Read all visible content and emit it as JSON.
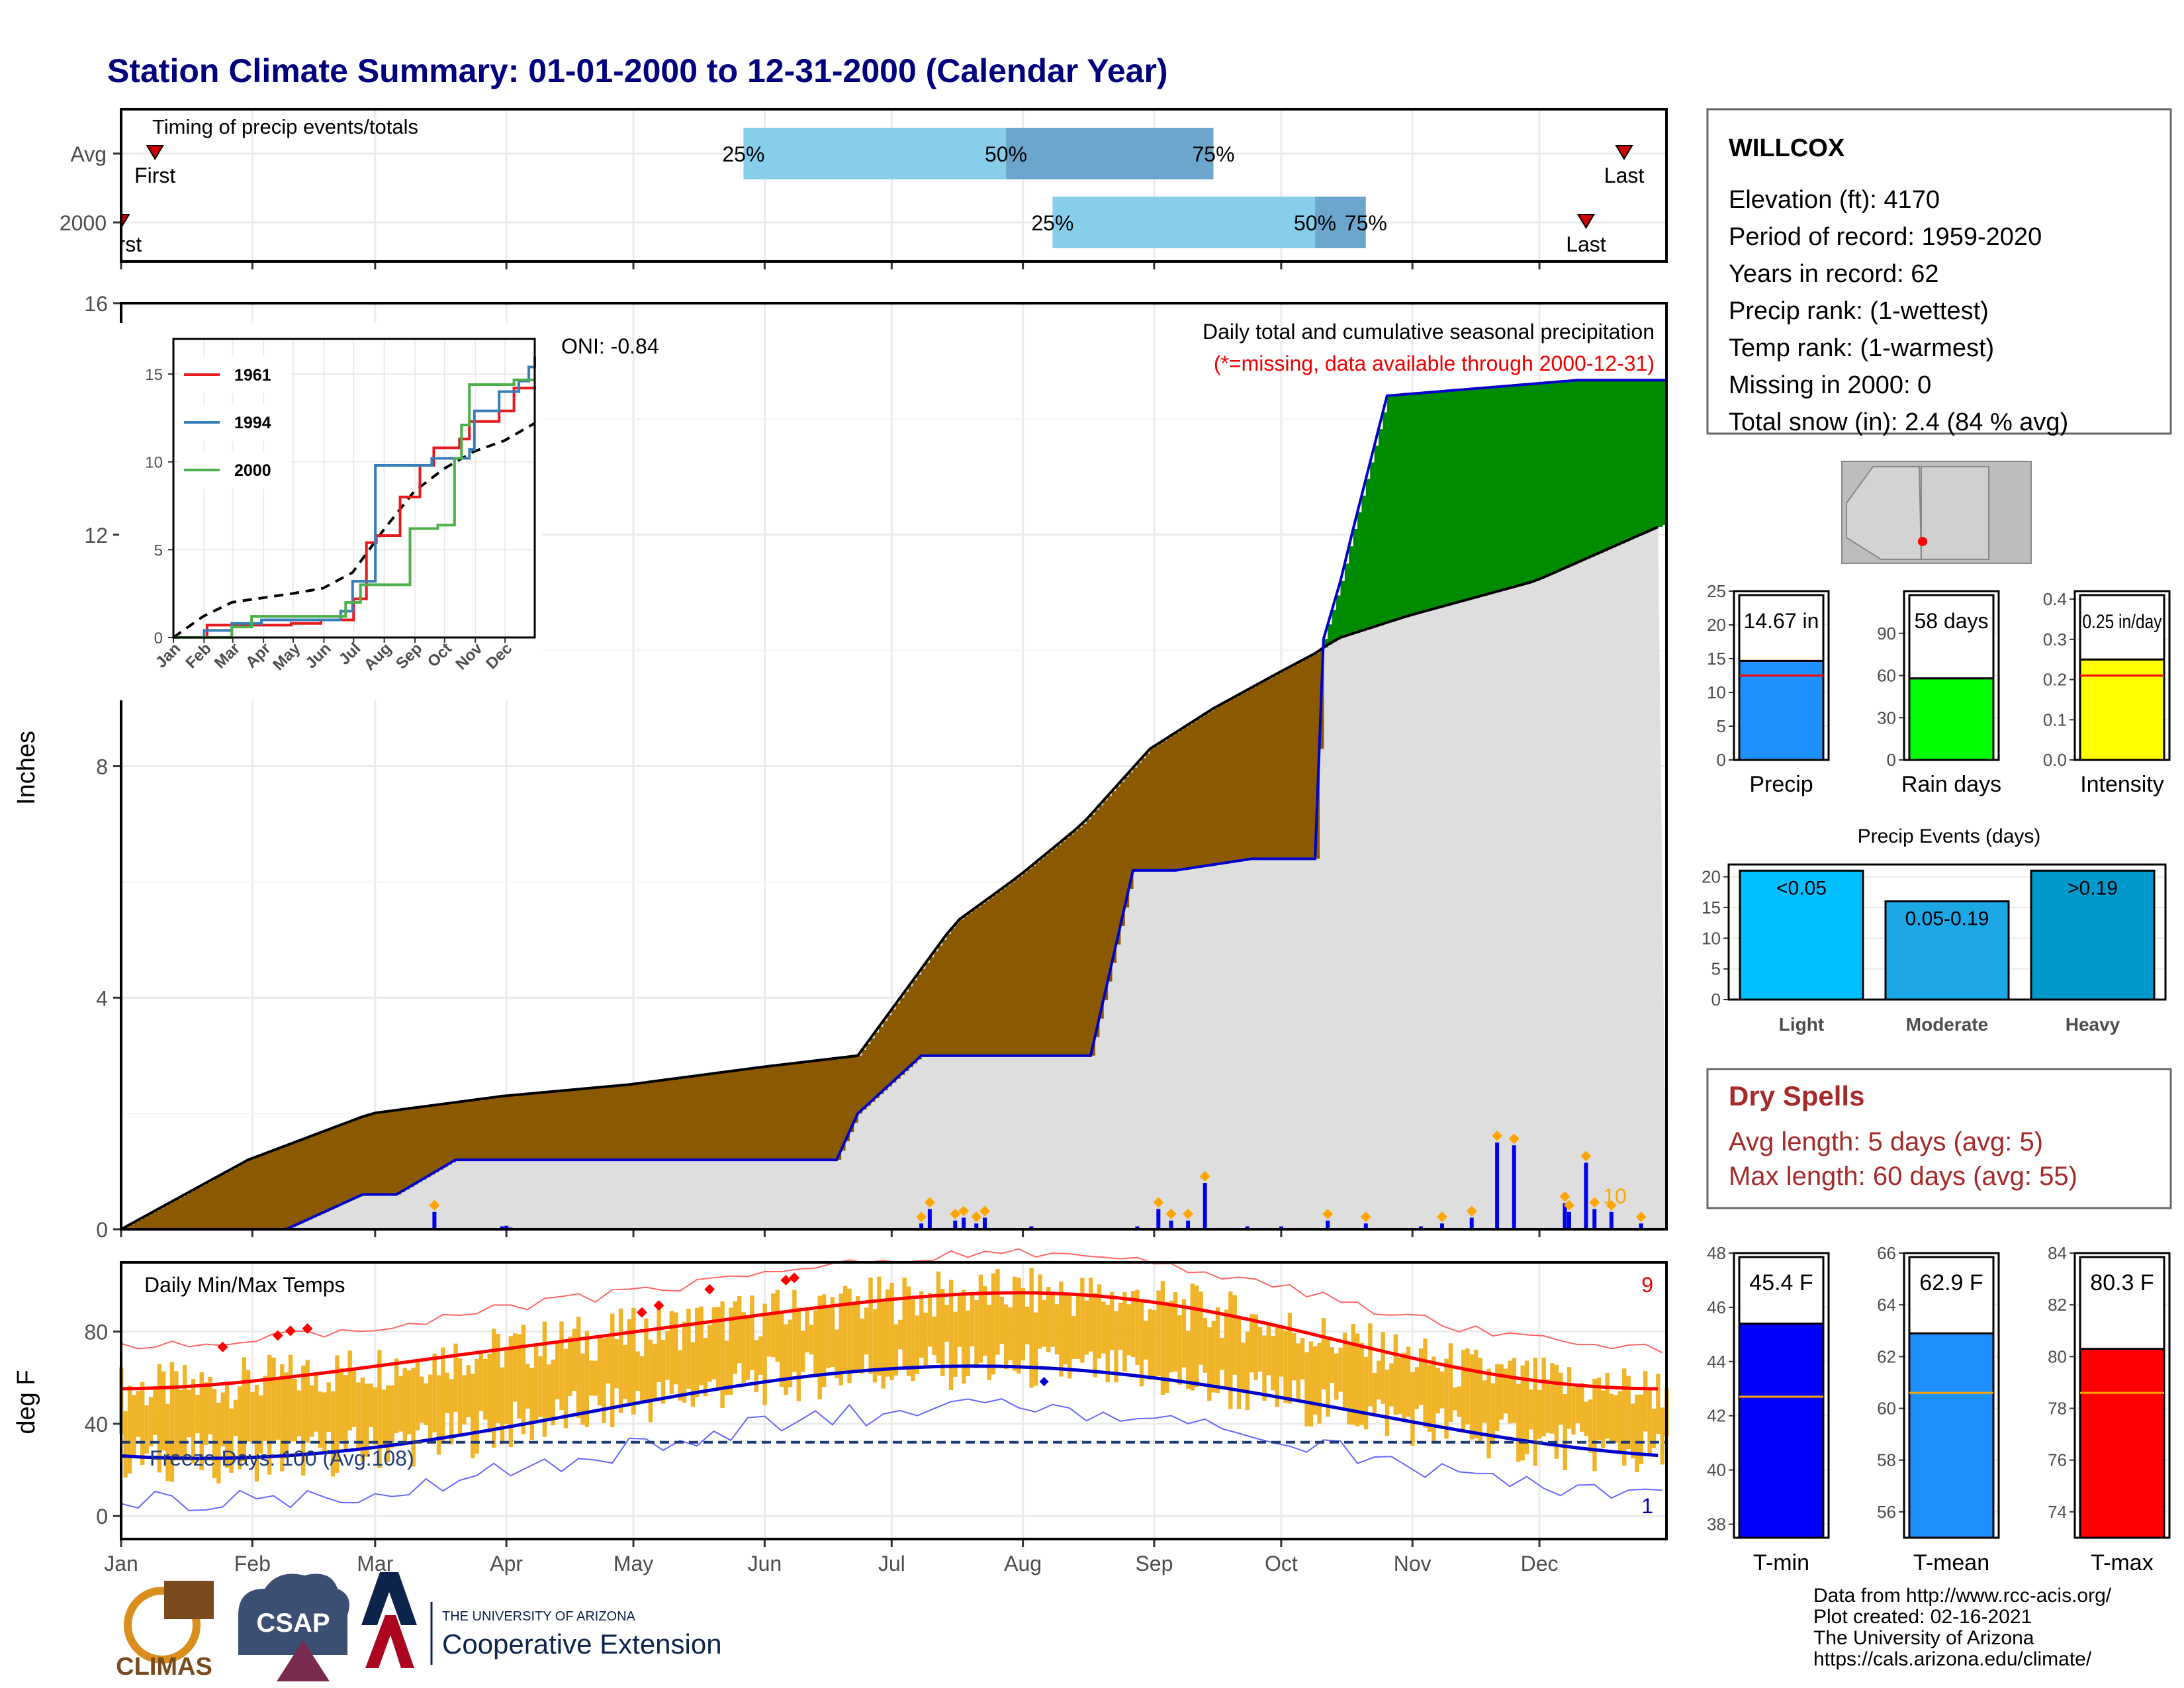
{
  "title": "Station Climate Summary: 01-01-2000 to 12-31-2000 (Calendar Year)",
  "months": [
    "Jan",
    "Feb",
    "Mar",
    "Apr",
    "May",
    "Jun",
    "Jul",
    "Aug",
    "Sep",
    "Oct",
    "Nov",
    "Dec"
  ],
  "colors": {
    "title": "#00007f",
    "avg_area": "#dedede",
    "deficit": "#8b5a00",
    "surplus": "#008c00",
    "cum_line": "#0000cc",
    "daily_bar": "#0000ee",
    "marker": "#ffa500",
    "temp_bar": "#f0b429",
    "max_line": "#ff0000",
    "min_line": "#0000cc",
    "freeze_line": "#1f3c78",
    "dry_spells": "#a52a2a"
  },
  "timing": {
    "panel_title": "Timing of precip events/totals",
    "rows": [
      {
        "label": "Avg",
        "q25": "25%",
        "q50": "50%",
        "q75": "75%",
        "first": "First",
        "last": "Last",
        "first_doy": 9,
        "q25_doy": 148,
        "q50_doy": 210,
        "q75_doy": 259,
        "last_doy": 356
      },
      {
        "label": "2000",
        "q25": "25%",
        "q50": "50%",
        "q75": "75%",
        "first": "First",
        "last": "Last",
        "first_doy": 1,
        "q25_doy": 221,
        "q50_doy": 283,
        "q75_doy": 295,
        "last_doy": 347
      }
    ]
  },
  "precip_panel": {
    "ylabel": "Inches",
    "ylim": [
      0,
      16
    ],
    "yticks": [
      "0",
      "4",
      "8",
      "12",
      "16"
    ],
    "legend_title": "Daily total and cumulative seasonal precipitation",
    "missing_note": "(*=missing, data available through 2000-12-31)",
    "oni": "ONI: -0.84",
    "count_label": "10"
  },
  "inset": {
    "yticks": [
      "0",
      "5",
      "10",
      "15"
    ],
    "xticks": [
      "Jan",
      "Feb",
      "Mar",
      "Apr",
      "May",
      "Jun",
      "Jul",
      "Aug",
      "Sep",
      "Oct",
      "Nov",
      "Dec"
    ],
    "legend": [
      {
        "name": "1961",
        "color": "#e41a1c"
      },
      {
        "name": "1994",
        "color": "#377eb8"
      },
      {
        "name": "2000",
        "color": "#4daf4a"
      }
    ]
  },
  "temp_panel": {
    "ylabel": "deg F",
    "title": "Daily Min/Max Temps",
    "yticks": [
      "0",
      "40",
      "80"
    ],
    "freeze_text": "Freeze Days: 100 (Avg:108)",
    "max_record_count": "9",
    "min_record_count": "1"
  },
  "station": {
    "name": "WILLCOX",
    "lines": [
      "Elevation (ft): 4170",
      "Period of record: 1959-2020",
      "Years in record: 62",
      "Precip rank:  (1-wettest)",
      "Temp rank:  (1-warmest)",
      "Missing in 2000: 0",
      "Total snow (in): 2.4 (84 % avg)"
    ]
  },
  "mini_bars": [
    {
      "label": "Precip",
      "value_text": "14.67 in",
      "value": 14.67,
      "avg": 12.5,
      "ymax": 25,
      "ticks": [
        "0",
        "5",
        "10",
        "15",
        "20",
        "25"
      ],
      "color": "#1e90ff"
    },
    {
      "label": "Rain days",
      "value_text": "58 days",
      "value": 58,
      "avg": 59,
      "ymax": 120,
      "ticks": [
        "0",
        "30",
        "60",
        "90"
      ],
      "color": "#00ff00"
    },
    {
      "label": "Intensity",
      "value_text": "0.25 in/day",
      "value": 0.25,
      "avg": 0.21,
      "ymax": 0.42,
      "ticks": [
        "0.0",
        "0.1",
        "0.2",
        "0.3",
        "0.4"
      ],
      "color": "#ffff00"
    }
  ],
  "precip_events": {
    "title": "Precip Events (days)",
    "yticks": [
      "0",
      "5",
      "10",
      "15",
      "20"
    ],
    "ymax": 22,
    "bars": [
      {
        "category": "Light",
        "label": "<0.05",
        "value": 21,
        "color": "#00bfff"
      },
      {
        "category": "Moderate",
        "label": "0.05-0.19",
        "value": 16,
        "color": "#1ca7e6"
      },
      {
        "category": "Heavy",
        "label": ">0.19",
        "value": 21,
        "color": "#0099cc"
      }
    ]
  },
  "dry_spells": {
    "title": "Dry Spells",
    "avg_line": "Avg length: 5 days (avg: 5)",
    "max_line": "Max length: 60 days (avg: 55)"
  },
  "temp_bars": [
    {
      "label": "T-min",
      "value_text": "45.4 F",
      "value": 45.4,
      "avg": 42.7,
      "ymin": 37.5,
      "ymax": 48,
      "ticks": [
        "38",
        "40",
        "42",
        "44",
        "46",
        "48"
      ],
      "color": "#0000ff"
    },
    {
      "label": "T-mean",
      "value_text": "62.9 F",
      "value": 62.9,
      "avg": 60.6,
      "ymin": 55,
      "ymax": 66,
      "ticks": [
        "56",
        "58",
        "60",
        "62",
        "64",
        "66"
      ],
      "color": "#1e90ff"
    },
    {
      "label": "T-max",
      "value_text": "80.3 F",
      "value": 80.3,
      "avg": 78.6,
      "ymin": 73,
      "ymax": 84,
      "ticks": [
        "74",
        "76",
        "78",
        "80",
        "82",
        "84"
      ],
      "color": "#ff0000"
    }
  ],
  "footer": {
    "lines": [
      "Data from http://www.rcc-acis.org/",
      "Plot created: 02-16-2021",
      "The University of Arizona",
      "https://cals.arizona.edu/climate/"
    ],
    "climas": "CLIMAS",
    "csap": "CSAP",
    "ua_small": "THE UNIVERSITY OF ARIZONA",
    "ua_big": "Cooperative Extension"
  },
  "chart_data": {
    "type": "area",
    "title": "Station Climate Summary: 01-01-2000 to 12-31-2000 (Calendar Year)",
    "ylabel": "Inches",
    "ylim": [
      0,
      16
    ],
    "series": [
      {
        "name": "2000",
        "x_doy": [
          1,
          8,
          40,
          58,
          66,
          80,
          120,
          155,
          170,
          175,
          190,
          211,
          230,
          240,
          250,
          268,
          283,
          285,
          289,
          292,
          300,
          345,
          366
        ],
        "values": [
          0,
          0,
          0,
          0.6,
          0.6,
          1.2,
          1.2,
          1.2,
          1.2,
          2.0,
          3.0,
          3.0,
          3.0,
          6.2,
          6.2,
          6.4,
          6.4,
          10.2,
          11.2,
          12.1,
          14.4,
          14.67,
          14.67
        ]
      },
      {
        "x_doy": [
          1,
          31,
          60,
          91,
          121,
          152,
          175,
          182,
          198,
          213,
          228,
          244,
          259,
          274,
          283,
          288,
          305,
          335,
          366
        ],
        "values": [
          0,
          1.2,
          2.0,
          2.3,
          2.5,
          2.8,
          3.0,
          3.7,
          5.3,
          6.1,
          7.0,
          8.3,
          9.0,
          9.6,
          9.95,
          10.2,
          10.6,
          11.2,
          12.2
        ]
      }
    ],
    "daily_precip": {
      "x_doy": [
        40,
        75,
        91,
        92,
        93,
        190,
        192,
        198,
        200,
        203,
        205,
        216,
        241,
        246,
        249,
        253,
        257,
        267,
        275,
        286,
        295,
        308,
        313,
        320,
        326,
        330,
        342,
        343,
        347,
        349,
        353,
        360
      ],
      "values": [
        0.03,
        0.3,
        0.05,
        0.06,
        0.03,
        0.1,
        0.35,
        0.15,
        0.2,
        0.1,
        0.2,
        0.05,
        0.05,
        0.35,
        0.15,
        0.15,
        0.8,
        0.05,
        0.05,
        0.15,
        0.1,
        0.05,
        0.1,
        0.2,
        1.5,
        1.45,
        0.45,
        0.3,
        1.15,
        0.35,
        0.3,
        0.1
      ]
    }
  }
}
